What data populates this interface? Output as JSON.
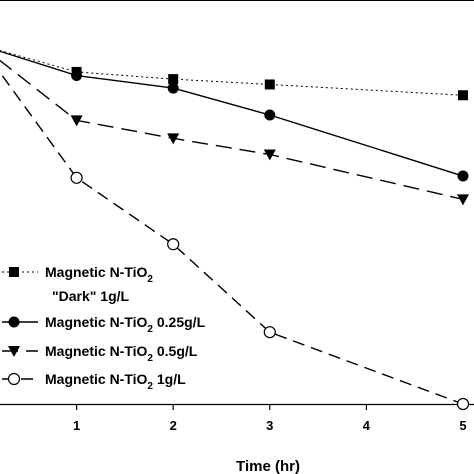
{
  "chart_data": {
    "type": "line",
    "xlabel": "Time (hr)",
    "x_ticks": [
      "1",
      "2",
      "3",
      "4",
      "5"
    ],
    "xlim": [
      0,
      5
    ],
    "grid": false,
    "legend_position": "lower-left",
    "series": [
      {
        "name": "Magnetic N-TiO2 \"Dark\" 1g/L",
        "legend_lines": [
          {
            "main": "Magnetic N-TiO",
            "sub": "2",
            "tail": ""
          },
          {
            "main": "\"Dark\" 1g/L",
            "sub": "",
            "tail": ""
          }
        ],
        "marker": "square",
        "line_style": "dotted",
        "x": [
          0,
          1,
          2,
          3,
          5
        ],
        "y": [
          1.0,
          0.925,
          0.905,
          0.89,
          0.86
        ]
      },
      {
        "name": "Magnetic N-TiO2 0.25g/L",
        "legend_lines": [
          {
            "main": "Magnetic N-TiO",
            "sub": "2",
            "tail": " 0.25g/L"
          }
        ],
        "marker": "circle-filled",
        "line_style": "solid",
        "x": [
          0,
          1,
          2,
          3,
          5
        ],
        "y": [
          1.0,
          0.915,
          0.88,
          0.805,
          0.635
        ]
      },
      {
        "name": "Magnetic N-TiO2 0.5g/L",
        "legend_lines": [
          {
            "main": "Magnetic N-TiO",
            "sub": "2",
            "tail": " 0.5g/L"
          }
        ],
        "marker": "triangle-down",
        "line_style": "long-dash",
        "x": [
          0,
          1,
          2,
          3,
          5
        ],
        "y": [
          1.0,
          0.79,
          0.74,
          0.695,
          0.57
        ]
      },
      {
        "name": "Magnetic N-TiO2 1g/L",
        "legend_lines": [
          {
            "main": "Magnetic N-TiO",
            "sub": "2",
            "tail": " 1g/L"
          }
        ],
        "marker": "circle-open",
        "line_style": "dashed",
        "x": [
          0,
          1,
          2,
          3,
          5
        ],
        "y": [
          1.0,
          0.63,
          0.445,
          0.2,
          0.0
        ]
      }
    ]
  }
}
